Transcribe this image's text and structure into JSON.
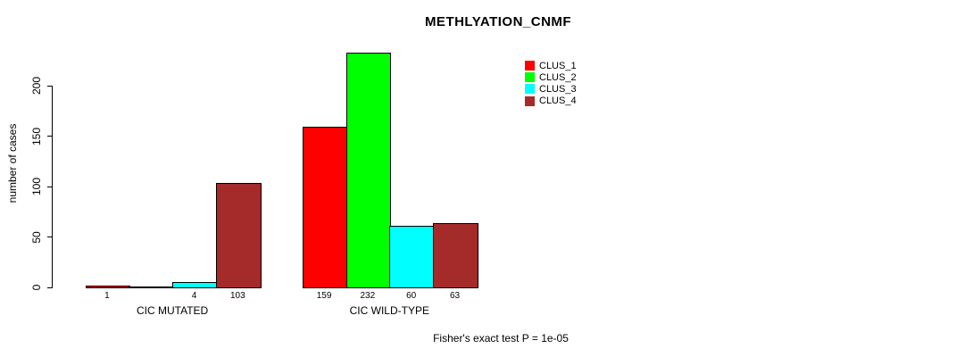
{
  "chart_data": {
    "type": "bar",
    "title": "METHLYATION_CNMF",
    "xlabel": "",
    "ylabel": "number of cases",
    "yticks": [
      0,
      50,
      100,
      150,
      200
    ],
    "ylim": [
      0,
      240
    ],
    "grid": false,
    "legend_position": "top-right",
    "background_color": "#FFFFFF",
    "axis_color": "#000000",
    "series": [
      {
        "name": "CLUS_1",
        "color": "#FF0000"
      },
      {
        "name": "CLUS_2",
        "color": "#00FF00"
      },
      {
        "name": "CLUS_3",
        "color": "#00FFFF"
      },
      {
        "name": "CLUS_4",
        "color": "#A52A2A"
      }
    ],
    "groups": [
      {
        "label": "CIC MUTATED",
        "values": [
          1,
          0,
          4,
          103
        ],
        "value_labels": [
          "1",
          "",
          "4",
          "103"
        ]
      },
      {
        "label": "CIC WILD-TYPE",
        "values": [
          159,
          232,
          60,
          63
        ],
        "value_labels": [
          "159",
          "232",
          "60",
          "63"
        ]
      }
    ],
    "footnote": "Fisher's exact test P = 1e-05"
  }
}
